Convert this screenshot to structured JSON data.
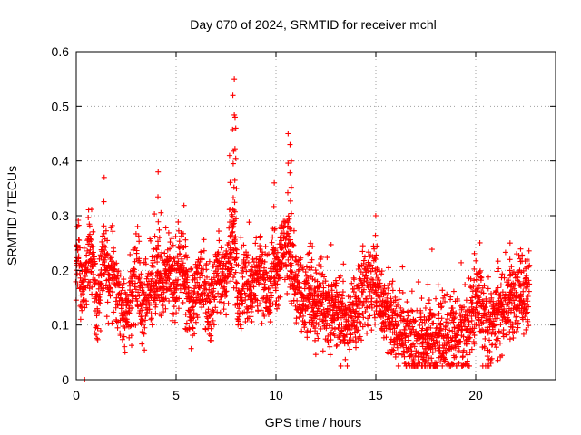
{
  "chart_data": {
    "type": "scatter",
    "title": "Day 070 of 2024, SRMTID for receiver mchl",
    "xlabel": "GPS time / hours",
    "ylabel": "SRMTID / TECUs",
    "xlim": [
      0,
      24
    ],
    "ylim": [
      0,
      0.6
    ],
    "xticks": [
      0,
      5,
      10,
      15,
      20
    ],
    "xtick_labels": [
      "0",
      "5",
      "10",
      "15",
      "20"
    ],
    "yticks": [
      0,
      0.1,
      0.2,
      0.3,
      0.4,
      0.5,
      0.6
    ],
    "ytick_labels": [
      "0",
      "0.1",
      "0.2",
      "0.3",
      "0.4",
      "0.5",
      "0.6"
    ],
    "grid": true,
    "marker": "+",
    "color": "#ff0000",
    "series": [
      {
        "name": "SRMTID",
        "profile": {
          "x": [
            0.0,
            0.1,
            0.2,
            0.35,
            0.5,
            0.65,
            0.8,
            1.0,
            1.2,
            1.4,
            1.6,
            1.8,
            2.0,
            2.2,
            2.4,
            2.6,
            2.8,
            3.0,
            3.3,
            3.6,
            3.9,
            4.1,
            4.4,
            4.7,
            5.0,
            5.3,
            5.6,
            5.9,
            6.2,
            6.5,
            6.8,
            7.1,
            7.4,
            7.7,
            7.9,
            8.1,
            8.4,
            8.7,
            9.0,
            9.3,
            9.6,
            9.9,
            10.1,
            10.4,
            10.6,
            10.8,
            11.1,
            11.4,
            11.7,
            12.0,
            12.3,
            12.6,
            12.9,
            13.2,
            13.5,
            13.8,
            14.1,
            14.4,
            14.7,
            15.0,
            15.3,
            15.6,
            15.9,
            16.2,
            16.5,
            16.8,
            17.1,
            17.4,
            17.7,
            18.0,
            18.3,
            18.6,
            18.9,
            19.2,
            19.5,
            19.8,
            20.0,
            20.3,
            20.6,
            20.9,
            21.2,
            21.5,
            21.8,
            22.1,
            22.4,
            22.7
          ],
          "y": [
            0.22,
            0.24,
            0.19,
            0.16,
            0.21,
            0.23,
            0.22,
            0.13,
            0.17,
            0.24,
            0.19,
            0.2,
            0.17,
            0.15,
            0.11,
            0.13,
            0.16,
            0.19,
            0.12,
            0.15,
            0.18,
            0.19,
            0.17,
            0.2,
            0.18,
            0.21,
            0.15,
            0.13,
            0.19,
            0.16,
            0.13,
            0.2,
            0.17,
            0.23,
            0.26,
            0.14,
            0.19,
            0.15,
            0.17,
            0.2,
            0.14,
            0.22,
            0.19,
            0.25,
            0.24,
            0.2,
            0.18,
            0.14,
            0.16,
            0.14,
            0.15,
            0.12,
            0.13,
            0.12,
            0.1,
            0.12,
            0.14,
            0.16,
            0.18,
            0.17,
            0.14,
            0.12,
            0.1,
            0.09,
            0.08,
            0.07,
            0.07,
            0.06,
            0.08,
            0.07,
            0.08,
            0.07,
            0.07,
            0.08,
            0.07,
            0.12,
            0.15,
            0.12,
            0.1,
            0.11,
            0.13,
            0.12,
            0.14,
            0.15,
            0.16,
            0.17
          ]
        },
        "peaks": [
          {
            "x": 0.0,
            "y": 0.28
          },
          {
            "x": 1.4,
            "y": 0.37
          },
          {
            "x": 4.1,
            "y": 0.38
          },
          {
            "x": 7.9,
            "y": 0.55
          },
          {
            "x": 7.85,
            "y": 0.52
          },
          {
            "x": 7.95,
            "y": 0.48
          },
          {
            "x": 8.0,
            "y": 0.46
          },
          {
            "x": 7.7,
            "y": 0.41
          },
          {
            "x": 9.9,
            "y": 0.36
          },
          {
            "x": 10.6,
            "y": 0.45
          },
          {
            "x": 10.7,
            "y": 0.43
          },
          {
            "x": 10.75,
            "y": 0.4
          },
          {
            "x": 15.0,
            "y": 0.3
          },
          {
            "x": 21.7,
            "y": 0.25
          }
        ],
        "outlier": {
          "x": 0.42,
          "y": 0.0
        }
      }
    ]
  }
}
